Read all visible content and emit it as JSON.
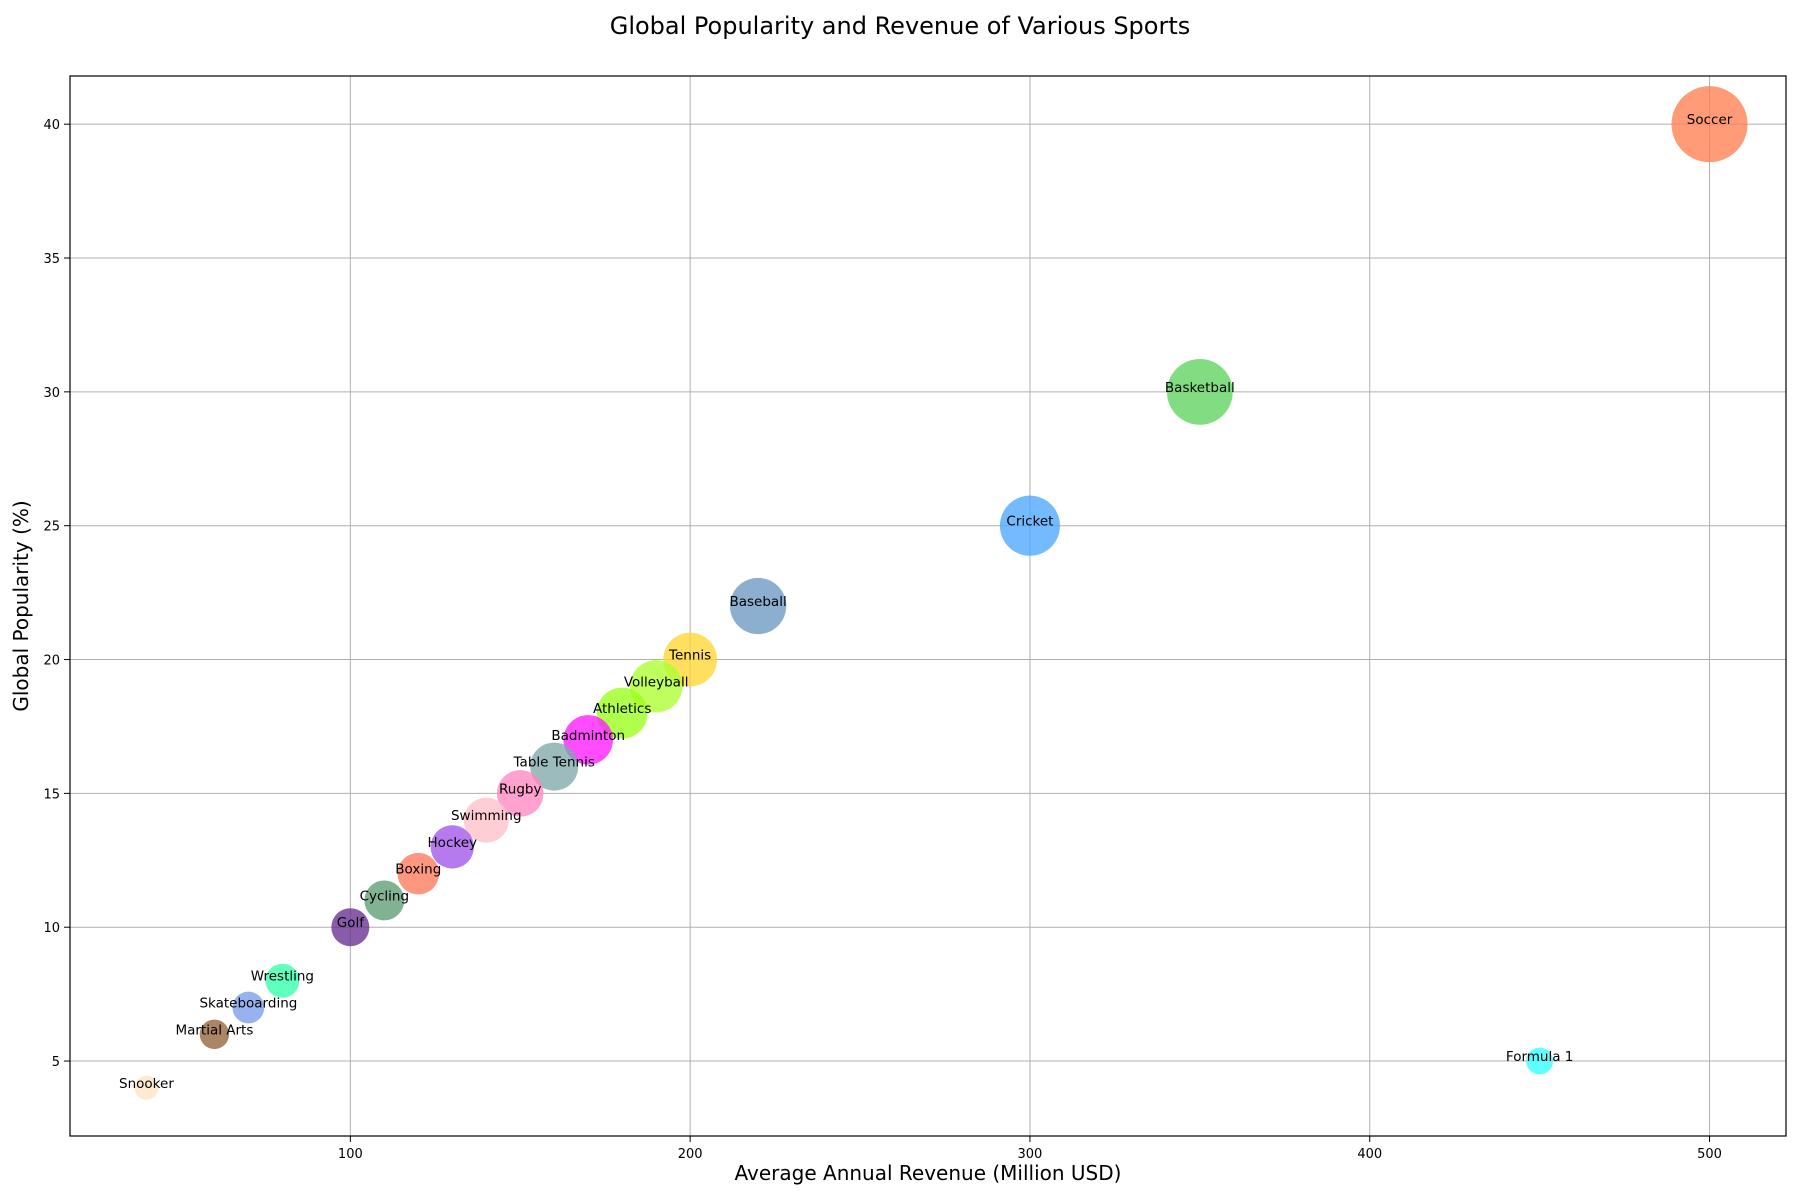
{
  "chart_data": {
    "type": "scatter",
    "title": "Global Popularity and Revenue of Various Sports",
    "xlabel": "Average Annual Revenue (Million USD)",
    "ylabel": "Global Popularity (%)",
    "xlim": [
      17.5,
      522.5
    ],
    "ylim": [
      2.2,
      41.8
    ],
    "xticks": [
      100,
      200,
      300,
      400,
      500
    ],
    "yticks": [
      5,
      10,
      15,
      20,
      25,
      30,
      35,
      40
    ],
    "grid": true,
    "bubble_size_encodes": "Global Popularity (%)",
    "points": [
      {
        "label": "Soccer",
        "x": 500,
        "y": 40,
        "color": "#ff7f50"
      },
      {
        "label": "Basketball",
        "x": 350,
        "y": 30,
        "color": "#5fd35f"
      },
      {
        "label": "Cricket",
        "x": 300,
        "y": 25,
        "color": "#4da6ff"
      },
      {
        "label": "Baseball",
        "x": 220,
        "y": 22,
        "color": "#6b98c2"
      },
      {
        "label": "Tennis",
        "x": 200,
        "y": 20,
        "color": "#ffd633"
      },
      {
        "label": "Volleyball",
        "x": 190,
        "y": 19,
        "color": "#adff2f"
      },
      {
        "label": "Athletics",
        "x": 180,
        "y": 18,
        "color": "#9aff1a"
      },
      {
        "label": "Badminton",
        "x": 170,
        "y": 17,
        "color": "#ff1aff"
      },
      {
        "label": "Table Tennis",
        "x": 160,
        "y": 16,
        "color": "#7fa8aa"
      },
      {
        "label": "Rugby",
        "x": 150,
        "y": 15,
        "color": "#ff88c2"
      },
      {
        "label": "Swimming",
        "x": 140,
        "y": 14,
        "color": "#ffbfc8"
      },
      {
        "label": "Hockey",
        "x": 130,
        "y": 13,
        "color": "#a155eb"
      },
      {
        "label": "Boxing",
        "x": 120,
        "y": 12,
        "color": "#ff7a5c"
      },
      {
        "label": "Cycling",
        "x": 110,
        "y": 11,
        "color": "#5e9e74"
      },
      {
        "label": "Golf",
        "x": 100,
        "y": 10,
        "color": "#662e8f"
      },
      {
        "label": "Wrestling",
        "x": 80,
        "y": 8,
        "color": "#33ffaa"
      },
      {
        "label": "Skateboarding",
        "x": 70,
        "y": 7,
        "color": "#7a9eeb"
      },
      {
        "label": "Martial Arts",
        "x": 60,
        "y": 6,
        "color": "#94633d"
      },
      {
        "label": "Snooker",
        "x": 40,
        "y": 4,
        "color": "#ffe4c4"
      },
      {
        "label": "Formula 1",
        "x": 450,
        "y": 5,
        "color": "#33ffff"
      }
    ]
  }
}
